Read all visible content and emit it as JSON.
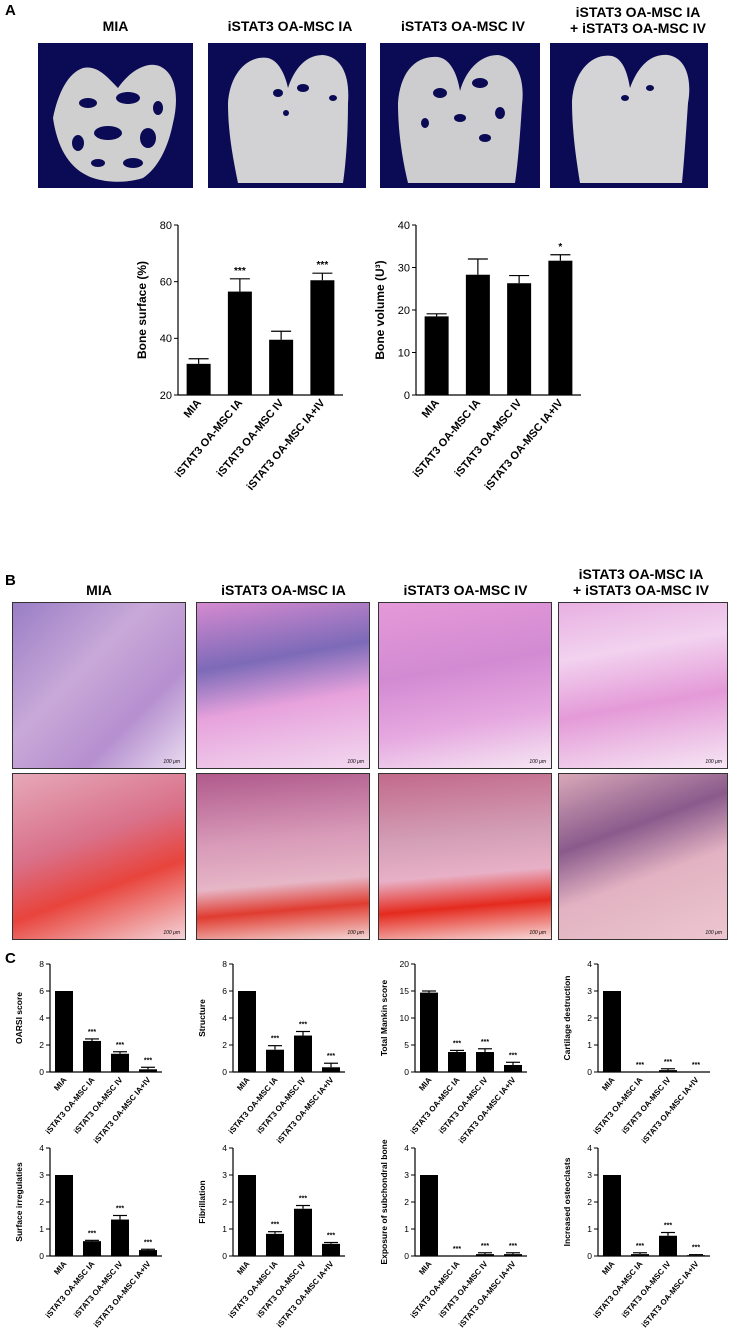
{
  "panels": {
    "a": "A",
    "b": "B",
    "c": "C"
  },
  "groups": {
    "g1": "MIA",
    "g2": "iSTAT3 OA-MSC IA",
    "g3": "iSTAT3 OA-MSC IV",
    "g4a": "iSTAT3 OA-MSC IA",
    "g4b": "+ iSTAT3 OA-MSC IV"
  },
  "scale_bar": "100 μm",
  "chart_data": [
    {
      "id": "bone_surface",
      "type": "bar",
      "categories": [
        "MIA",
        "iSTAT3 OA-MSC IA",
        "iSTAT3 OA-MSC IV",
        "iSTAT3 OA-MSC IA+IV"
      ],
      "values": [
        31,
        56.5,
        39.5,
        60.5
      ],
      "errors": [
        1.8,
        4.5,
        3,
        2.5
      ],
      "significance": [
        "",
        "***",
        "",
        "***"
      ],
      "ylabel": "Bone surface (%)",
      "ylim": [
        20,
        80
      ],
      "yticks": [
        20,
        40,
        60,
        80
      ]
    },
    {
      "id": "bone_volume",
      "type": "bar",
      "categories": [
        "MIA",
        "iSTAT3 OA-MSC IA",
        "iSTAT3 OA-MSC IV",
        "iSTAT3 OA-MSC IA+IV"
      ],
      "values": [
        18.5,
        28.3,
        26.3,
        31.6
      ],
      "errors": [
        0.6,
        3.7,
        1.8,
        1.4
      ],
      "significance": [
        "",
        "",
        "",
        "*"
      ],
      "ylabel": "Bone volume (U³)",
      "ylim": [
        0,
        40
      ],
      "yticks": [
        0,
        10,
        20,
        30,
        40
      ]
    },
    {
      "id": "oarsi",
      "type": "bar",
      "categories": [
        "MIA",
        "iSTAT3 OA-MSC IA",
        "iSTAT3 OA-MSC IV",
        "iSTAT3 OA-MSC IA+IV"
      ],
      "values": [
        6,
        2.3,
        1.35,
        0.2
      ],
      "errors": [
        0,
        0.15,
        0.15,
        0.15
      ],
      "significance": [
        "",
        "***",
        "***",
        "***"
      ],
      "ylabel": "OARSI score",
      "ylim": [
        0,
        8
      ],
      "yticks": [
        0,
        2,
        4,
        6,
        8
      ]
    },
    {
      "id": "structure",
      "type": "bar",
      "categories": [
        "MIA",
        "iSTAT3 OA-MSC IA",
        "iSTAT3 OA-MSC IV",
        "iSTAT3 OA-MSC IA+IV"
      ],
      "values": [
        6,
        1.65,
        2.7,
        0.35
      ],
      "errors": [
        0,
        0.3,
        0.3,
        0.3
      ],
      "significance": [
        "",
        "***",
        "***",
        "***"
      ],
      "ylabel": "Structure",
      "ylim": [
        0,
        8
      ],
      "yticks": [
        0,
        2,
        4,
        6,
        8
      ]
    },
    {
      "id": "mankin",
      "type": "bar",
      "categories": [
        "MIA",
        "iSTAT3 OA-MSC IA",
        "iSTAT3 OA-MSC IV",
        "iSTAT3 OA-MSC IA+IV"
      ],
      "values": [
        14.7,
        3.7,
        3.7,
        1.3
      ],
      "errors": [
        0.3,
        0.3,
        0.6,
        0.5
      ],
      "significance": [
        "",
        "***",
        "***",
        "***"
      ],
      "ylabel": "Total Mankin score",
      "ylim": [
        0,
        20
      ],
      "yticks": [
        0,
        5,
        10,
        15,
        20
      ]
    },
    {
      "id": "cartilage",
      "type": "bar",
      "categories": [
        "MIA",
        "iSTAT3 OA-MSC IA",
        "iSTAT3 OA-MSC IV",
        "iSTAT3 OA-MSC IA+IV"
      ],
      "values": [
        3,
        0,
        0.07,
        0
      ],
      "errors": [
        0,
        0,
        0.05,
        0
      ],
      "significance": [
        "",
        "***",
        "***",
        "***"
      ],
      "ylabel": "Cartilage destruction",
      "ylim": [
        0,
        4
      ],
      "yticks": [
        0,
        1,
        2,
        3,
        4
      ]
    },
    {
      "id": "surface",
      "type": "bar",
      "categories": [
        "MIA",
        "iSTAT3 OA-MSC IA",
        "iSTAT3 OA-MSC IV",
        "iSTAT3 OA-MSC IA+IV"
      ],
      "values": [
        3,
        0.55,
        1.35,
        0.22
      ],
      "errors": [
        0,
        0.03,
        0.15,
        0.03
      ],
      "significance": [
        "",
        "***",
        "***",
        "***"
      ],
      "ylabel": "Surface irregulaties",
      "ylim": [
        0,
        4
      ],
      "yticks": [
        0,
        1,
        2,
        3,
        4
      ]
    },
    {
      "id": "fibrillation",
      "type": "bar",
      "categories": [
        "MIA",
        "iSTAT3 OA-MSC IA",
        "iSTAT3 OA-MSC IV",
        "iSTAT3 OA-MSC IA+IV"
      ],
      "values": [
        3,
        0.82,
        1.75,
        0.45
      ],
      "errors": [
        0,
        0.08,
        0.12,
        0.05
      ],
      "significance": [
        "",
        "***",
        "***",
        "***"
      ],
      "ylabel": "Fibrillation",
      "ylim": [
        0,
        4
      ],
      "yticks": [
        0,
        1,
        2,
        3,
        4
      ]
    },
    {
      "id": "exposure",
      "type": "bar",
      "categories": [
        "MIA",
        "iSTAT3 OA-MSC IA",
        "iSTAT3 OA-MSC IV",
        "iSTAT3 OA-MSC IA+IV"
      ],
      "values": [
        3,
        0,
        0.07,
        0.07
      ],
      "errors": [
        0,
        0,
        0.05,
        0.05
      ],
      "significance": [
        "",
        "***",
        "***",
        "***"
      ],
      "ylabel": "Exposure of subchondral bone",
      "ylim": [
        0,
        4
      ],
      "yticks": [
        0,
        1,
        2,
        3,
        4
      ]
    },
    {
      "id": "osteoclasts",
      "type": "bar",
      "categories": [
        "MIA",
        "iSTAT3 OA-MSC IA",
        "iSTAT3 OA-MSC IV",
        "iSTAT3 OA-MSC IA+IV"
      ],
      "values": [
        3,
        0.07,
        0.75,
        0.03
      ],
      "errors": [
        0,
        0.05,
        0.12,
        0.02
      ],
      "significance": [
        "",
        "***",
        "***",
        "***"
      ],
      "ylabel": "Increased osteoclasts",
      "ylim": [
        0,
        4
      ],
      "yticks": [
        0,
        1,
        2,
        3,
        4
      ]
    }
  ]
}
